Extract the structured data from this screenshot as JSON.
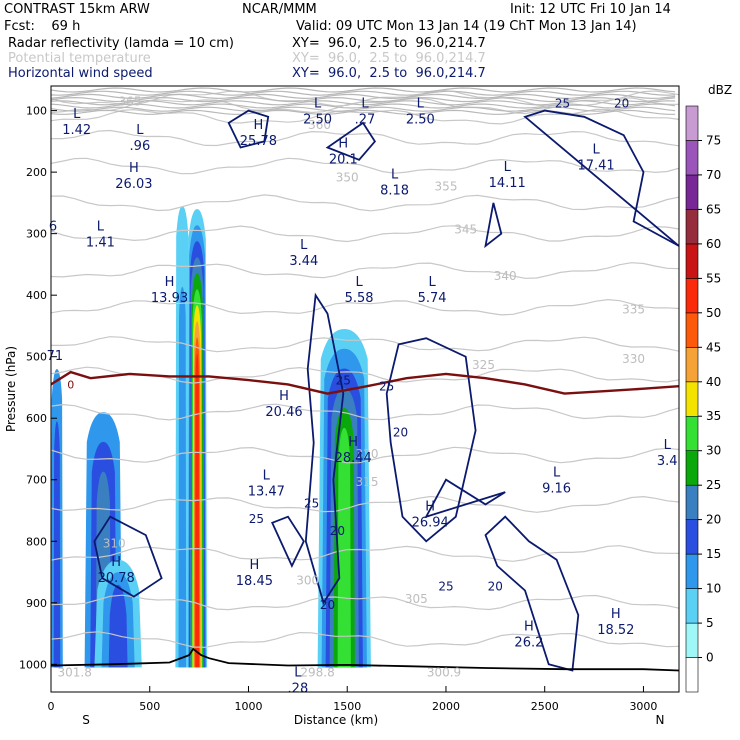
{
  "header": {
    "model": "CONTRAST 15km ARW",
    "center": "NCAR/MMM",
    "init": "Init: 12 UTC Fri 10 Jan 14",
    "fcst": "Fcst:    69 h",
    "valid": "Valid: 09 UTC Mon 13 Jan 14 (19 ChT Mon 13 Jan 14)",
    "fields": [
      {
        "name": "Radar reflectivity (lamda = 10 cm)",
        "xy": "XY=  96.0,  2.5 to  96.0,214.7",
        "color": "#000000"
      },
      {
        "name": "Potential temperature",
        "xy": "XY=  96.0,  2.5 to  96.0,214.7",
        "color": "#c8c8c8"
      },
      {
        "name": "Horizontal wind speed",
        "xy": "XY=  96.0,  2.5 to  96.0,214.7",
        "color": "#0b1a6e"
      }
    ]
  },
  "chart_data": {
    "type": "cross-section",
    "xlabel": "Distance (km)",
    "ylabel": "Pressure (hPa)",
    "xlim": [
      0,
      3180
    ],
    "ylim": [
      1045,
      60
    ],
    "xticks": [
      0,
      500,
      1000,
      1500,
      2000,
      2500,
      3000
    ],
    "yticks": [
      100,
      200,
      300,
      400,
      500,
      600,
      700,
      800,
      900,
      1000
    ],
    "x_end_labels": {
      "left": "S",
      "right": "N"
    },
    "colorbar": {
      "unit": "dBZ",
      "levels": [
        0,
        5,
        10,
        15,
        20,
        25,
        30,
        35,
        40,
        45,
        50,
        55,
        60,
        65,
        70,
        75
      ],
      "colors": [
        "#ffffff",
        "#9ff7f7",
        "#5ad0f5",
        "#2f97ec",
        "#2a4fe0",
        "#3a7fc0",
        "#0aa80a",
        "#35e035",
        "#f4e200",
        "#f5a336",
        "#fc5a0a",
        "#fa2a0a",
        "#c81414",
        "#962d3c",
        "#782896",
        "#9b54ba",
        "#c89bd2"
      ]
    },
    "reflectivity_cells": [
      {
        "x0": 0,
        "x1": 60,
        "p_top": 520,
        "levels": [
          10,
          15
        ]
      },
      {
        "x0": 170,
        "x1": 360,
        "p_top": 590,
        "levels": [
          10,
          15,
          20
        ]
      },
      {
        "x0": 220,
        "x1": 460,
        "p_top": 830,
        "levels": [
          5,
          10,
          15
        ]
      },
      {
        "x0": 630,
        "x1": 700,
        "p_top": 255,
        "levels": [
          5,
          10
        ]
      },
      {
        "x0": 690,
        "x1": 790,
        "p_top": 260,
        "levels": [
          5,
          10,
          15,
          20,
          25,
          30,
          35,
          40,
          45,
          50
        ]
      },
      {
        "x0": 1350,
        "x1": 1620,
        "p_top": 455,
        "levels": [
          5,
          10,
          15,
          20,
          25,
          30
        ]
      }
    ],
    "freezing_level": {
      "label": "0",
      "x": [
        0,
        100,
        200,
        400,
        600,
        800,
        1000,
        1200,
        1400,
        1600,
        1800,
        2000,
        2200,
        2400,
        2600,
        2800,
        3000,
        3180
      ],
      "p": [
        545,
        525,
        535,
        528,
        532,
        532,
        538,
        545,
        560,
        548,
        535,
        528,
        535,
        545,
        560,
        556,
        552,
        548
      ]
    },
    "surface": {
      "x": [
        0,
        300,
        600,
        700,
        720,
        760,
        800,
        900,
        1200,
        1500,
        1800,
        2200,
        2600,
        3000,
        3180
      ],
      "p": [
        1002,
        1000,
        997,
        985,
        975,
        985,
        990,
        998,
        1002,
        1001,
        1003,
        1006,
        1008,
        1008,
        1010
      ]
    },
    "theta_labels": [
      "365",
      "360",
      "355",
      "350",
      "345",
      "340",
      "335",
      "330",
      "325",
      "320",
      "315",
      "310",
      "305",
      "300",
      "298.8",
      "300.9",
      "301.8"
    ],
    "wind_labels": [
      "25",
      "20"
    ],
    "extrema": [
      {
        "t": "L",
        "v": "1.42",
        "x": 130,
        "p": 112
      },
      {
        "t": "L",
        "v": ".96",
        "x": 450,
        "p": 138
      },
      {
        "t": "H",
        "v": "25.78",
        "x": 1050,
        "p": 130
      },
      {
        "t": "H",
        "v": "20.1",
        "x": 1480,
        "p": 160
      },
      {
        "t": "L",
        "v": "2.50",
        "x": 1350,
        "p": 95
      },
      {
        "t": "L",
        "v": ".27",
        "x": 1590,
        "p": 95
      },
      {
        "t": "L",
        "v": "2.50",
        "x": 1870,
        "p": 95
      },
      {
        "t": "H",
        "v": "26.03",
        "x": 420,
        "p": 200
      },
      {
        "t": "L",
        "v": "8.18",
        "x": 1740,
        "p": 210
      },
      {
        "t": "L",
        "v": "14.11",
        "x": 2310,
        "p": 198
      },
      {
        "t": "L",
        "v": "17.41",
        "x": 2760,
        "p": 170
      },
      {
        "t": "L",
        "v": "1.41",
        "x": 250,
        "p": 295
      },
      {
        "t": "6",
        "v": "",
        "x": 10,
        "p": 295
      },
      {
        "t": "L",
        "v": "3.44",
        "x": 1280,
        "p": 325
      },
      {
        "t": "H",
        "v": "13.93",
        "x": 600,
        "p": 385
      },
      {
        "t": "L",
        "v": "5.58",
        "x": 1560,
        "p": 385
      },
      {
        "t": "L",
        "v": "5.74",
        "x": 1930,
        "p": 385
      },
      {
        "t": "71",
        "v": "",
        "x": 20,
        "p": 505
      },
      {
        "t": "H",
        "v": "20.46",
        "x": 1180,
        "p": 570
      },
      {
        "t": "H",
        "v": "28.44",
        "x": 1530,
        "p": 645
      },
      {
        "t": "L",
        "v": "13.47",
        "x": 1090,
        "p": 700
      },
      {
        "t": "L",
        "v": "9.16",
        "x": 2560,
        "p": 695
      },
      {
        "t": "L",
        "v": "3.4",
        "x": 3120,
        "p": 650
      },
      {
        "t": "H",
        "v": "26.94",
        "x": 1920,
        "p": 750
      },
      {
        "t": "H",
        "v": "20.78",
        "x": 330,
        "p": 840
      },
      {
        "t": "H",
        "v": "18.45",
        "x": 1030,
        "p": 845
      },
      {
        "t": "H",
        "v": "26.2",
        "x": 2420,
        "p": 945
      },
      {
        "t": "H",
        "v": "18.52",
        "x": 2860,
        "p": 925
      },
      {
        "t": "L",
        "v": ".28",
        "x": 1250,
        "p": 1020
      }
    ]
  }
}
